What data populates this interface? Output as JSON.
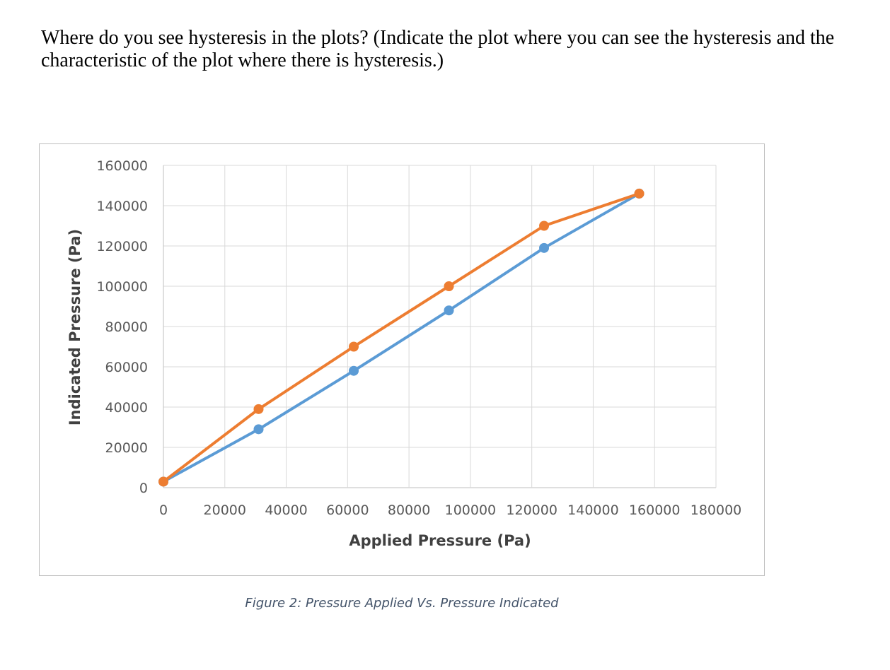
{
  "question": {
    "text": "Where do you see hysteresis in the plots? (Indicate the plot where you can see the hysteresis and the characteristic of the plot where there is hysteresis.)"
  },
  "figure": {
    "caption": "Figure 2: Pressure Applied Vs. Pressure Indicated"
  },
  "chart_data": {
    "type": "line",
    "title": "",
    "xlabel": "Applied Pressure (Pa)",
    "ylabel": "Indicated Pressure (Pa)",
    "xlim": [
      0,
      180000
    ],
    "ylim": [
      0,
      160000
    ],
    "xticks": [
      0,
      20000,
      40000,
      60000,
      80000,
      100000,
      120000,
      140000,
      160000,
      180000
    ],
    "yticks": [
      0,
      20000,
      40000,
      60000,
      80000,
      100000,
      120000,
      140000,
      160000
    ],
    "grid": true,
    "legend": "none",
    "series": [
      {
        "color": "#5b9bd5",
        "x": [
          0,
          31000,
          62000,
          93000,
          124000,
          155000
        ],
        "y": [
          3000,
          29000,
          58000,
          88000,
          119000,
          146000
        ]
      },
      {
        "color": "#ed7d31",
        "x": [
          0,
          31000,
          62000,
          93000,
          124000,
          155000
        ],
        "y": [
          3000,
          39000,
          70000,
          100000,
          130000,
          146000
        ]
      }
    ]
  }
}
